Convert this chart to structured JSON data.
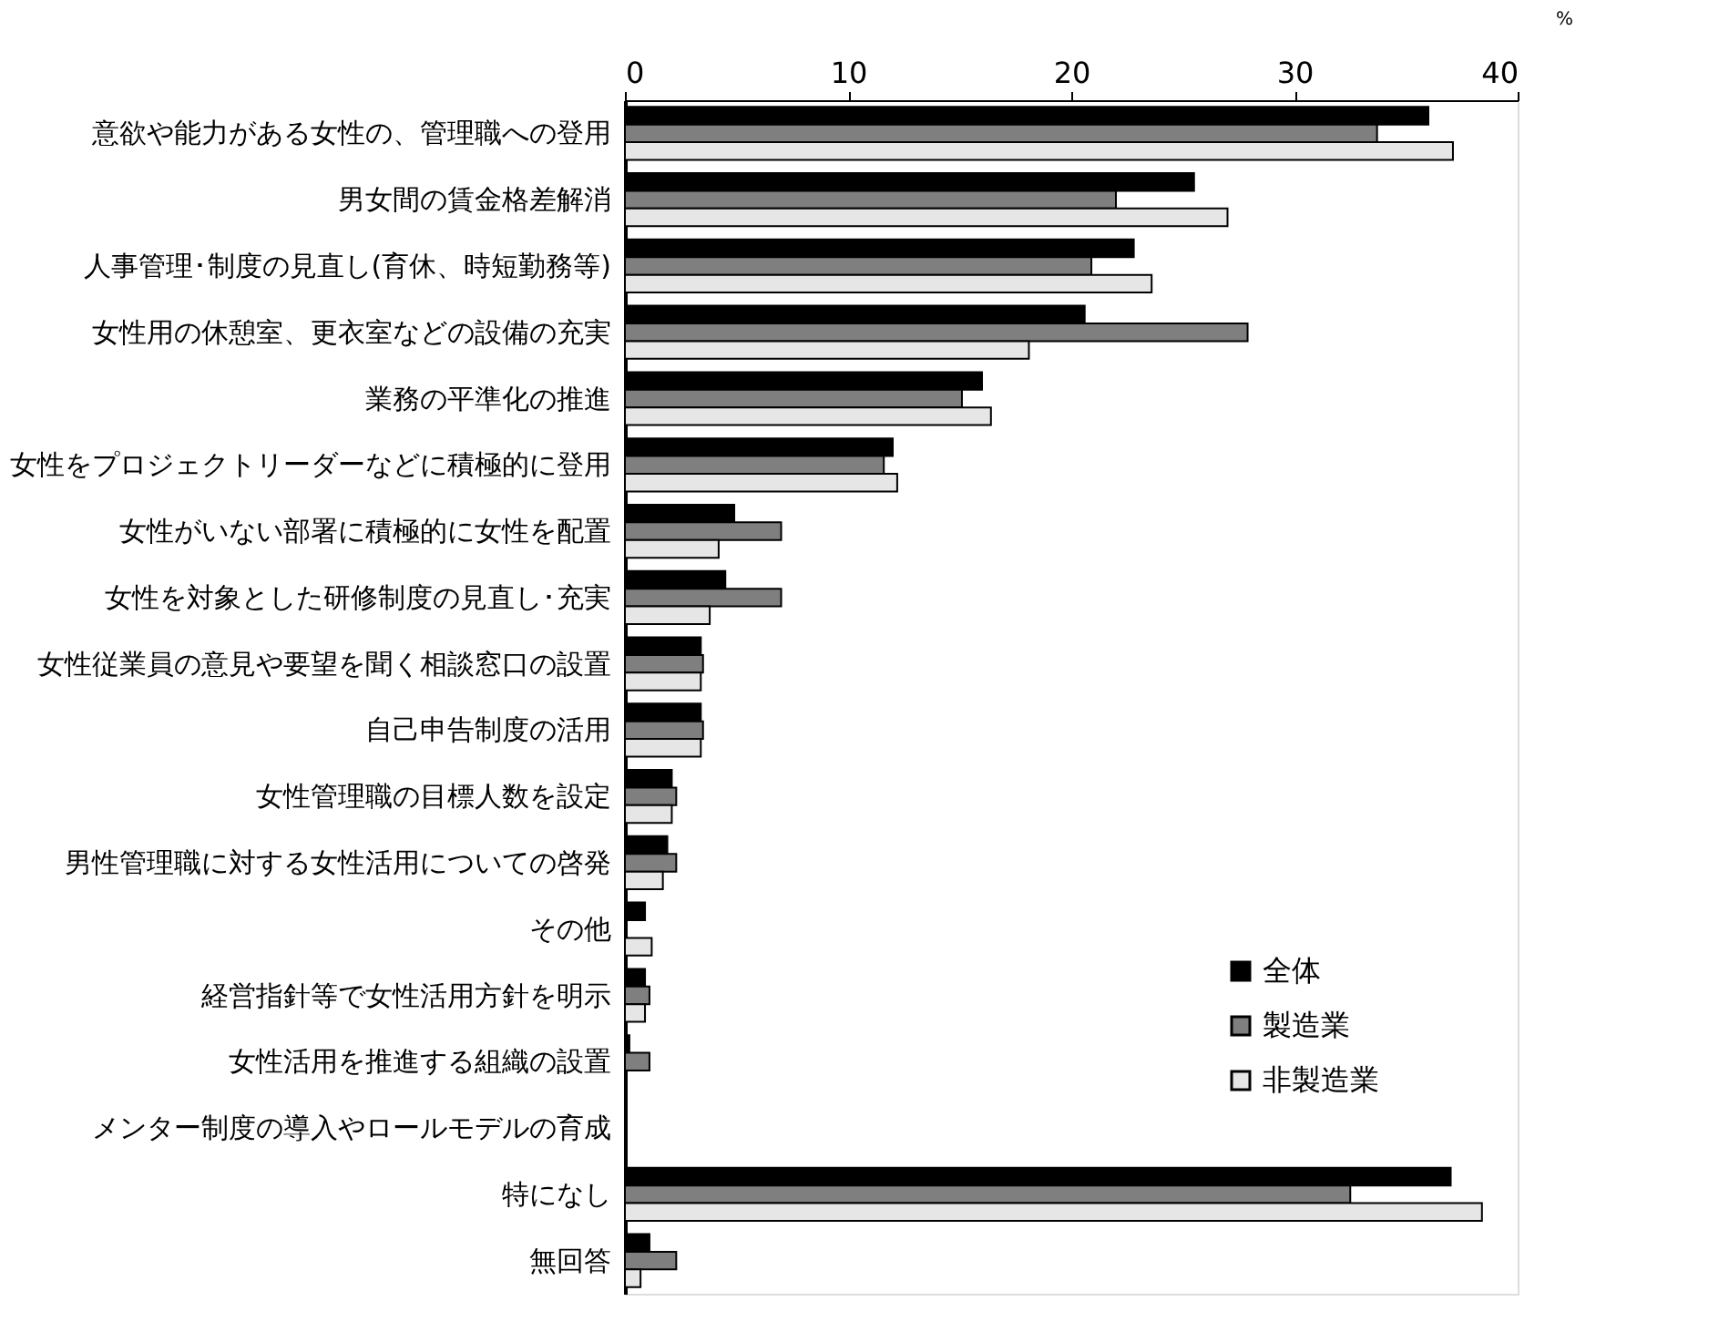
{
  "chart_data": {
    "type": "bar",
    "orientation": "horizontal",
    "xlabel": "%",
    "categories": [
      "意欲や能力がある女性の、管理職への登用",
      "男女間の賃金格差解消",
      "人事管理･制度の見直し(育休、時短勤務等)",
      "女性用の休憩室、更衣室などの設備の充実",
      "業務の平準化の推進",
      "女性をプロジェクトリーダーなどに積極的に登用",
      "女性がいない部署に積極的に女性を配置",
      "女性を対象とした研修制度の見直し･充実",
      "女性従業員の意見や要望を聞く相談窓口の設置",
      "自己申告制度の活用",
      "女性管理職の目標人数を設定",
      "男性管理職に対する女性活用についての啓発",
      "その他",
      "経営指針等で女性活用方針を明示",
      "女性活用を推進する組織の設置",
      "メンター制度の導入やロールモデルの育成",
      "特になし",
      "無回答"
    ],
    "series": [
      {
        "name": "全体",
        "color": "#000000",
        "values": [
          36.0,
          25.5,
          22.8,
          20.6,
          16.0,
          12.0,
          4.9,
          4.5,
          3.4,
          3.4,
          2.1,
          1.9,
          0.9,
          0.9,
          0.2,
          0,
          37.0,
          1.1
        ]
      },
      {
        "name": "製造業",
        "color": "#7f7f7f",
        "values": [
          33.7,
          22.0,
          20.9,
          27.9,
          15.1,
          11.6,
          7.0,
          7.0,
          3.5,
          3.5,
          2.3,
          2.3,
          0,
          1.1,
          1.1,
          0,
          32.5,
          2.3
        ]
      },
      {
        "name": "非製造業",
        "color": "#e6e6e6",
        "values": [
          37.1,
          27.0,
          23.6,
          18.1,
          16.4,
          12.2,
          4.2,
          3.8,
          3.4,
          3.4,
          2.1,
          1.7,
          1.2,
          0.9,
          0,
          0,
          38.4,
          0.7
        ]
      }
    ],
    "xlim": [
      0,
      40
    ],
    "xticks": [
      0,
      10,
      20,
      30,
      40
    ],
    "grid": false,
    "legend": "bottom right"
  }
}
